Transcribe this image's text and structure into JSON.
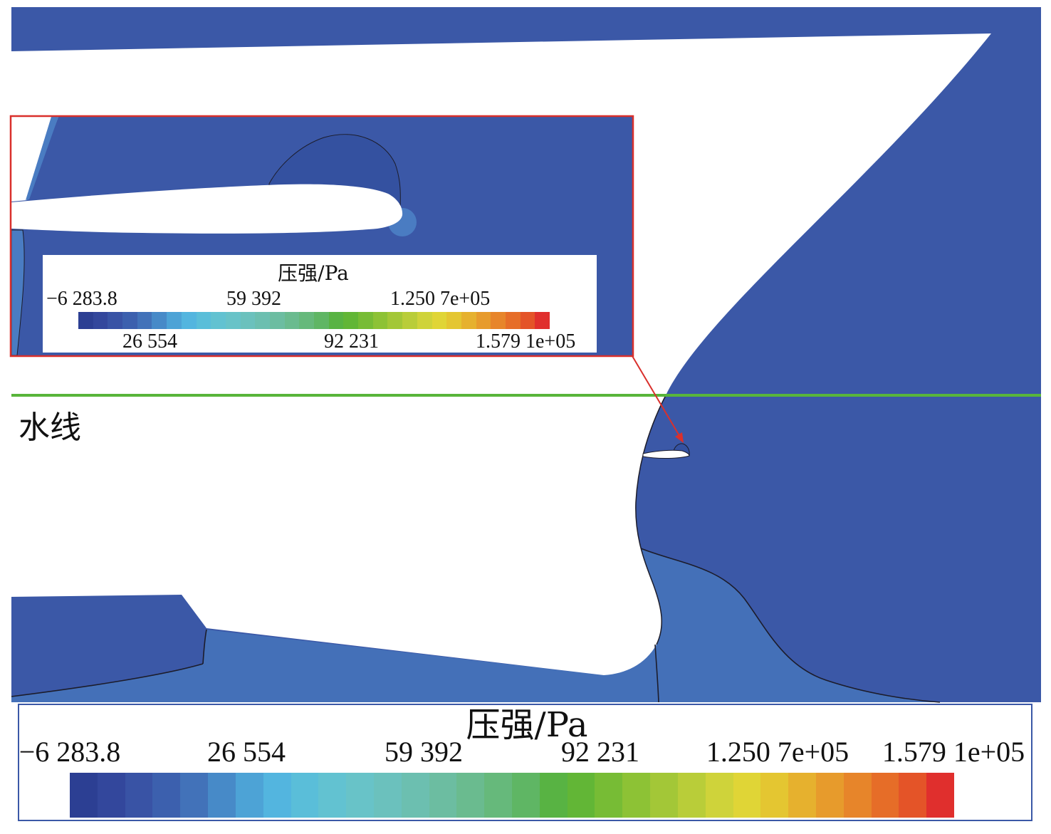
{
  "figure": {
    "waterline_label": "水线"
  },
  "colorbar": {
    "title": "压强/Pa",
    "ticks": [
      "−6 283.8",
      "26 554",
      "59 392",
      "92 231",
      "1.250 7e+05",
      "1.579 1e+05"
    ],
    "colors": [
      "#2c3f93",
      "#33479c",
      "#3953a5",
      "#3c60ae",
      "#4272b9",
      "#478ac8",
      "#4da3d6",
      "#53b5df",
      "#5abed9",
      "#62c2d1",
      "#68c3c8",
      "#6bc1bd",
      "#6cbfb0",
      "#6cbda1",
      "#6abb8f",
      "#66b97b",
      "#5fb664",
      "#58b343",
      "#62b636",
      "#77bc35",
      "#8dc235",
      "#a3c737",
      "#b9cd39",
      "#cfd33a",
      "#e0d536",
      "#e4c631",
      "#e6b12e",
      "#e79b2c",
      "#e7852a",
      "#e66d28",
      "#e45428",
      "#e02f2d"
    ]
  },
  "palette": {
    "fluid": "#3b58a7",
    "fluid_deep": "#4470b8",
    "fluid_light": "#4a7cc2",
    "bubble": "#3451a0",
    "hull": "#ffffff",
    "contour_line": "#1c1c2a",
    "waterline": "#58b53a",
    "highlight": "#d9302c"
  }
}
